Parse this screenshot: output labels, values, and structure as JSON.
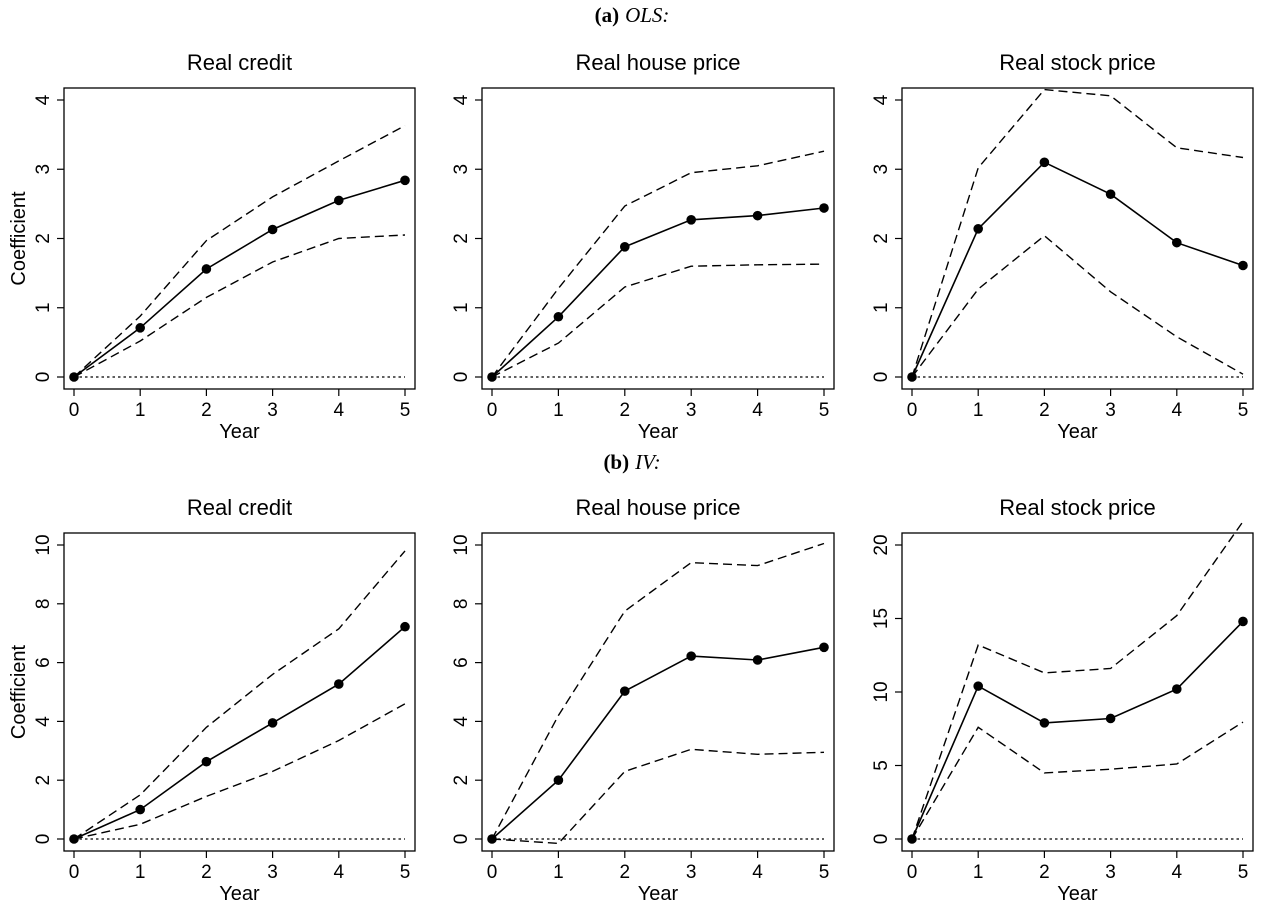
{
  "panels": [
    {
      "label": "(a)",
      "text": "OLS:"
    },
    {
      "label": "(b)",
      "text": "IV:"
    }
  ],
  "chart_data": [
    {
      "type": "line",
      "title": "Real credit",
      "xlabel": "Year",
      "ylabel": "Coefficient",
      "x": [
        0,
        1,
        2,
        3,
        4,
        5
      ],
      "xlim": [
        0,
        5
      ],
      "ylim": [
        0,
        4
      ],
      "yticks": [
        0,
        1,
        2,
        3,
        4
      ],
      "xticks": [
        0,
        1,
        2,
        3,
        4,
        5
      ],
      "series": [
        {
          "role": "estimate",
          "values": [
            0,
            0.71,
            1.56,
            2.13,
            2.55,
            2.84
          ]
        },
        {
          "role": "upper",
          "values": [
            0,
            0.88,
            1.97,
            2.6,
            3.12,
            3.63
          ]
        },
        {
          "role": "lower",
          "values": [
            0,
            0.52,
            1.15,
            1.66,
            2.0,
            2.05
          ]
        },
        {
          "role": "zero",
          "values": [
            0,
            0,
            0,
            0,
            0,
            0
          ]
        }
      ]
    },
    {
      "type": "line",
      "title": "Real house price",
      "xlabel": "Year",
      "ylabel": "",
      "x": [
        0,
        1,
        2,
        3,
        4,
        5
      ],
      "xlim": [
        0,
        5
      ],
      "ylim": [
        0,
        4
      ],
      "yticks": [
        0,
        1,
        2,
        3,
        4
      ],
      "xticks": [
        0,
        1,
        2,
        3,
        4,
        5
      ],
      "series": [
        {
          "role": "estimate",
          "values": [
            0,
            0.87,
            1.88,
            2.27,
            2.33,
            2.44
          ]
        },
        {
          "role": "upper",
          "values": [
            0,
            1.28,
            2.47,
            2.95,
            3.05,
            3.26
          ]
        },
        {
          "role": "lower",
          "values": [
            0,
            0.49,
            1.3,
            1.6,
            1.62,
            1.63
          ]
        },
        {
          "role": "zero",
          "values": [
            0,
            0,
            0,
            0,
            0,
            0
          ]
        }
      ]
    },
    {
      "type": "line",
      "title": "Real stock price",
      "xlabel": "Year",
      "ylabel": "",
      "x": [
        0,
        1,
        2,
        3,
        4,
        5
      ],
      "xlim": [
        0,
        5
      ],
      "ylim": [
        0,
        4
      ],
      "yticks": [
        0,
        1,
        2,
        3,
        4
      ],
      "xticks": [
        0,
        1,
        2,
        3,
        4,
        5
      ],
      "series": [
        {
          "role": "estimate",
          "values": [
            0,
            2.14,
            3.1,
            2.64,
            1.94,
            1.61
          ]
        },
        {
          "role": "upper",
          "values": [
            0,
            3.02,
            4.15,
            4.06,
            3.31,
            3.17
          ]
        },
        {
          "role": "lower",
          "values": [
            0,
            1.27,
            2.04,
            1.23,
            0.58,
            0.04
          ]
        },
        {
          "role": "zero",
          "values": [
            0,
            0,
            0,
            0,
            0,
            0
          ]
        }
      ]
    },
    {
      "type": "line",
      "title": "Real credit",
      "xlabel": "Year",
      "ylabel": "Coefficient",
      "x": [
        0,
        1,
        2,
        3,
        4,
        5
      ],
      "xlim": [
        0,
        5
      ],
      "ylim": [
        0,
        10
      ],
      "yticks": [
        0,
        2,
        4,
        6,
        8,
        10
      ],
      "xticks": [
        0,
        1,
        2,
        3,
        4,
        5
      ],
      "series": [
        {
          "role": "estimate",
          "values": [
            0,
            1.0,
            2.63,
            3.95,
            5.27,
            7.22
          ]
        },
        {
          "role": "upper",
          "values": [
            0,
            1.5,
            3.8,
            5.6,
            7.15,
            9.8
          ]
        },
        {
          "role": "lower",
          "values": [
            0,
            0.5,
            1.45,
            2.3,
            3.35,
            4.6
          ]
        },
        {
          "role": "zero",
          "values": [
            0,
            0,
            0,
            0,
            0,
            0
          ]
        }
      ]
    },
    {
      "type": "line",
      "title": "Real house price",
      "xlabel": "Year",
      "ylabel": "",
      "x": [
        0,
        1,
        2,
        3,
        4,
        5
      ],
      "xlim": [
        0,
        5
      ],
      "ylim": [
        0,
        10
      ],
      "yticks": [
        0,
        2,
        4,
        6,
        8,
        10
      ],
      "xticks": [
        0,
        1,
        2,
        3,
        4,
        5
      ],
      "series": [
        {
          "role": "estimate",
          "values": [
            0,
            2.0,
            5.03,
            6.22,
            6.09,
            6.52
          ]
        },
        {
          "role": "upper",
          "values": [
            0,
            4.2,
            7.75,
            9.4,
            9.3,
            10.05
          ]
        },
        {
          "role": "lower",
          "values": [
            0,
            -0.15,
            2.3,
            3.05,
            2.88,
            2.95
          ]
        },
        {
          "role": "zero",
          "values": [
            0,
            0,
            0,
            0,
            0,
            0
          ]
        }
      ]
    },
    {
      "type": "line",
      "title": "Real stock price",
      "xlabel": "Year",
      "ylabel": "",
      "x": [
        0,
        1,
        2,
        3,
        4,
        5
      ],
      "xlim": [
        0,
        5
      ],
      "ylim": [
        0,
        20
      ],
      "yticks": [
        0,
        5,
        10,
        15,
        20
      ],
      "xticks": [
        0,
        1,
        2,
        3,
        4,
        5
      ],
      "series": [
        {
          "role": "estimate",
          "values": [
            0,
            10.4,
            7.9,
            8.2,
            10.2,
            14.8
          ]
        },
        {
          "role": "upper",
          "values": [
            0,
            13.2,
            11.3,
            11.6,
            15.2,
            21.6
          ]
        },
        {
          "role": "lower",
          "values": [
            0,
            7.6,
            4.5,
            4.75,
            5.1,
            7.95
          ]
        },
        {
          "role": "zero",
          "values": [
            0,
            0,
            0,
            0,
            0,
            0
          ]
        }
      ]
    }
  ]
}
